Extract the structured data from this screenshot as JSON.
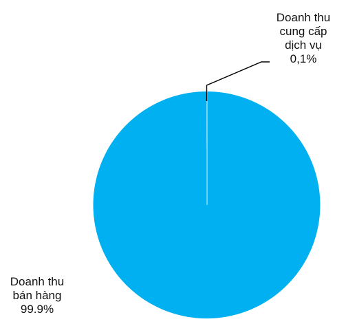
{
  "chart_data": {
    "type": "pie",
    "slices": [
      {
        "value": 99.9,
        "color": "#00b0f0",
        "label_lines": [
          "Doanh thu",
          "bán hàng",
          "99.9%"
        ]
      },
      {
        "value": 0.1,
        "color": "#00b0f0",
        "label_lines": [
          "Doanh thu",
          "cung cấp",
          "dịch vụ",
          "0,1%"
        ]
      }
    ],
    "legend": "none",
    "start_angle": "top",
    "direction": "counterclockwise"
  }
}
